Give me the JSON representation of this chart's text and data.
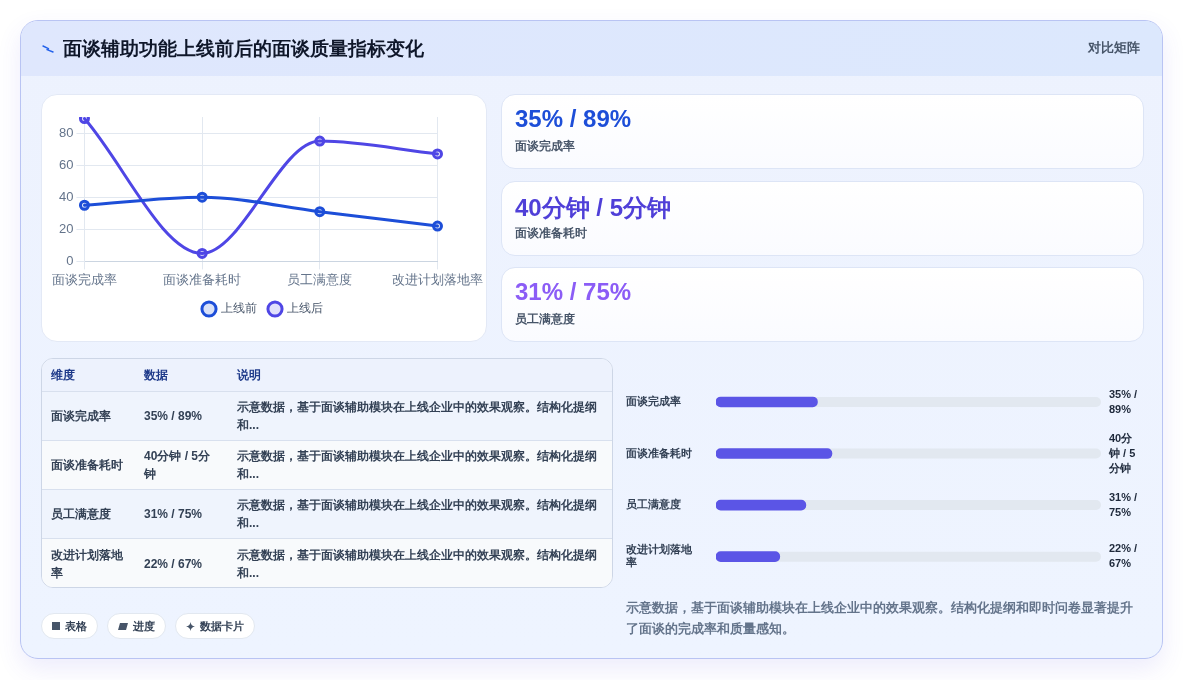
{
  "chart_data": [
    {
      "type": "other",
      "title": "面谈辅助功能上线前后的面谈质量指标变化",
      "subtitle": "对比矩阵"
    },
    {
      "type": "line",
      "categories": [
        "面谈完成率",
        "面谈准备耗时",
        "员工满意度",
        "改进计划落地率"
      ],
      "series": [
        {
          "name": "上线前",
          "color": "#1d4ed8",
          "values": [
            35,
            40,
            31,
            22
          ]
        },
        {
          "name": "上线后",
          "color": "#4f46e5",
          "values": [
            89,
            5,
            75,
            67
          ]
        }
      ],
      "ylim": [
        0,
        90
      ],
      "yticks": [
        0,
        20,
        40,
        60,
        80
      ],
      "grid": true,
      "legend": "bottom",
      "marker": "circle"
    },
    {
      "type": "other",
      "annotations": [
        "35% / 89%",
        "面谈完成率",
        "40分钟 / 5分钟",
        "面谈准备耗时",
        "31% / 75%",
        "员工满意度"
      ]
    },
    {
      "type": "other",
      "annotations": [
        "维度",
        "数据",
        "说明",
        "面谈完成率",
        "35% / 89%",
        "示意数据，基于面谈辅助模块在上线企业中的效果观察。结构化提纲和...",
        "面谈准备耗时",
        "40分钟 / 5分钟",
        "示意数据，基于面谈辅助模块在上线企业中的效果观察。结构化提纲和...",
        "员工满意度",
        "31% / 75%",
        "示意数据，基于面谈辅助模块在上线企业中的效果观察。结构化提纲和...",
        "改进计划落地率",
        "22% / 67%",
        "示意数据，基于面谈辅助模块在上线企业中的效果观察。结构化提纲和..."
      ]
    },
    {
      "type": "bar",
      "orientation": "horizontal",
      "categories": [
        "面谈完成率",
        "面谈准备耗时",
        "员工满意度",
        "改进计划落地率"
      ],
      "values": [
        35,
        40,
        31,
        22
      ],
      "color": "#5b55e6",
      "value_labels": [
        "35% / 89%",
        "40分钟 / 5分钟",
        "31% / 75%",
        "22% / 67%"
      ],
      "annotations": [
        "示意数据，基于面谈辅助模块在上线企业中的效果观察。结构化提纲和即时问卷显著提升了面谈的完成率和质量感知。"
      ]
    },
    {
      "type": "other",
      "annotations": [
        "表格",
        "进度",
        "数据卡片"
      ]
    }
  ]
}
